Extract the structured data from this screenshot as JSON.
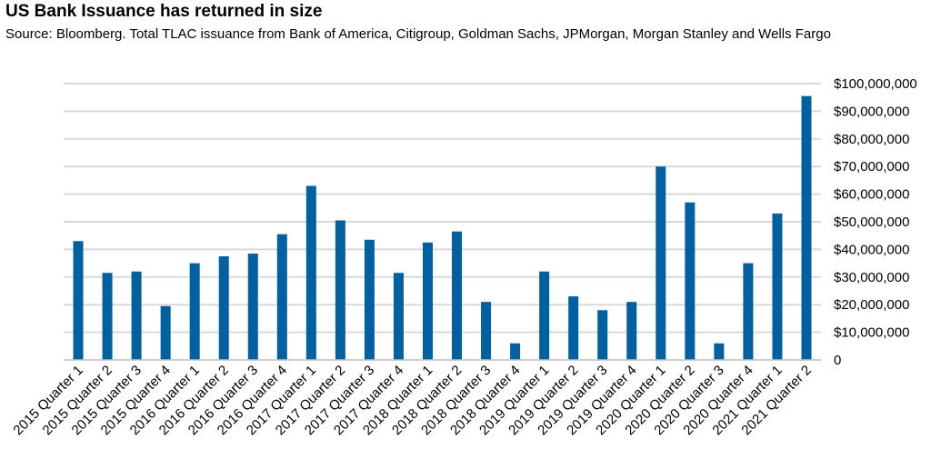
{
  "title": "US Bank Issuance has returned in size",
  "subtitle": "Source: Bloomberg. Total TLAC issuance from Bank of America, Citigroup, Goldman Sachs, JPMorgan, Morgan Stanley and Wells Fargo",
  "colors": {
    "bar": "#0060A0",
    "grid": "#D9D9D9",
    "axis": "#BFBFBF"
  },
  "chart_data": {
    "type": "bar",
    "title": "US Bank Issuance has returned in size",
    "xlabel": "",
    "ylabel": "",
    "ylim": [
      0,
      100000000
    ],
    "y_ticks": [
      0,
      10000000,
      20000000,
      30000000,
      40000000,
      50000000,
      60000000,
      70000000,
      80000000,
      90000000,
      100000000
    ],
    "y_tick_labels": [
      "0",
      "$10,000,000",
      "$20,000,000",
      "$30,000,000",
      "$40,000,000",
      "$50,000,000",
      "$60,000,000",
      "$70,000,000",
      "$80,000,000",
      "$90,000,000",
      "$100,000,000"
    ],
    "y_axis_position": "right",
    "grid": true,
    "legend": "none",
    "categories": [
      "2015 Quarter 1",
      "2015 Quarter 2",
      "2015 Quarter 3",
      "2015 Quarter 4",
      "2016 Quarter 1",
      "2016 Quarter 2",
      "2016 Quarter 3",
      "2016 Quarter 4",
      "2017 Quarter 1",
      "2017 Quarter 2",
      "2017 Quarter 3",
      "2017 Quarter 4",
      "2018 Quarter 1",
      "2018 Quarter 2",
      "2018 Quarter 3",
      "2018 Quarter 4",
      "2019 Quarter 1",
      "2019 Quarter 2",
      "2019 Quarter 3",
      "2019 Quarter 4",
      "2020 Quarter 1",
      "2020 Quarter 2",
      "2020 Quarter 3",
      "2020 Quarter 4",
      "2021 Quarter 1",
      "2021 Quarter 2"
    ],
    "values": [
      43000000,
      31500000,
      32000000,
      19500000,
      35000000,
      37500000,
      38500000,
      45500000,
      63000000,
      50500000,
      43500000,
      31500000,
      42500000,
      46500000,
      21000000,
      6000000,
      32000000,
      23000000,
      18000000,
      21000000,
      70000000,
      57000000,
      6000000,
      35000000,
      53000000,
      95500000
    ]
  }
}
